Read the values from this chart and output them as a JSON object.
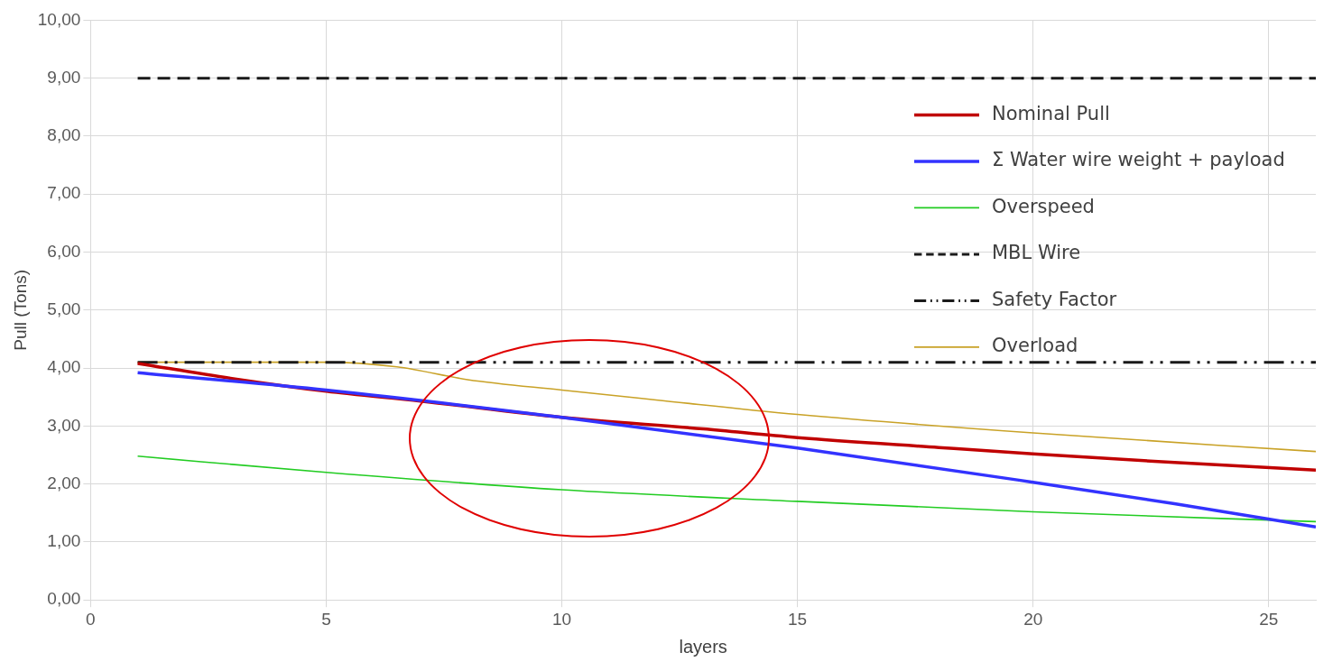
{
  "chart_data": {
    "type": "line",
    "xlabel": "layers",
    "ylabel": "Pull (Tons)",
    "xlim": [
      0,
      26
    ],
    "xticks": [
      0,
      5,
      10,
      15,
      20,
      25
    ],
    "ylim": [
      0,
      10
    ],
    "yticks": [
      {
        "value": 0,
        "label": "0,00"
      },
      {
        "value": 1,
        "label": "1,00"
      },
      {
        "value": 2,
        "label": "2,00"
      },
      {
        "value": 3,
        "label": "3,00"
      },
      {
        "value": 4,
        "label": "4,00"
      },
      {
        "value": 5,
        "label": "5,00"
      },
      {
        "value": 6,
        "label": "6,00"
      },
      {
        "value": 7,
        "label": "7,00"
      },
      {
        "value": 8,
        "label": "8,00"
      },
      {
        "value": 9,
        "label": "9,00"
      },
      {
        "value": 10,
        "label": "10,00"
      }
    ],
    "grid": true,
    "legend": "top right",
    "marker": "none",
    "series": [
      {
        "name": "Nominal Pull",
        "color": "#c00000",
        "line_style": "solid",
        "x": [
          1,
          3,
          5,
          7,
          10,
          13,
          15,
          18,
          20,
          23,
          26
        ],
        "values": [
          4.08,
          3.82,
          3.6,
          3.43,
          3.15,
          2.95,
          2.8,
          2.63,
          2.52,
          2.37,
          2.24
        ]
      },
      {
        "name": "Σ Water wire weight + payload",
        "color": "#3333ff",
        "line_style": "solid",
        "x": [
          1,
          5,
          10,
          15,
          20,
          23,
          26
        ],
        "values": [
          3.92,
          3.62,
          3.15,
          2.62,
          2.03,
          1.66,
          1.26
        ]
      },
      {
        "name": "Overspeed",
        "color": "#22cc22",
        "line_style": "solid",
        "x": [
          1,
          5,
          10,
          15,
          20,
          26
        ],
        "values": [
          2.48,
          2.2,
          1.9,
          1.7,
          1.52,
          1.35
        ]
      },
      {
        "name": "MBL Wire",
        "color": "#1a1a1a",
        "line_style": "dashed",
        "x": [
          1,
          26
        ],
        "values": [
          9.0,
          9.0
        ]
      },
      {
        "name": "Safety Factor",
        "color": "#1a1a1a",
        "line_style": "dotted",
        "x": [
          1,
          26
        ],
        "values": [
          4.1,
          4.1
        ]
      },
      {
        "name": "Overload",
        "color": "#c9a227",
        "line_style": "solid",
        "x": [
          1,
          5,
          6.5,
          8,
          10,
          12,
          15,
          20,
          26
        ],
        "values": [
          4.1,
          4.1,
          4.02,
          3.8,
          3.62,
          3.45,
          3.2,
          2.88,
          2.56
        ]
      }
    ]
  }
}
